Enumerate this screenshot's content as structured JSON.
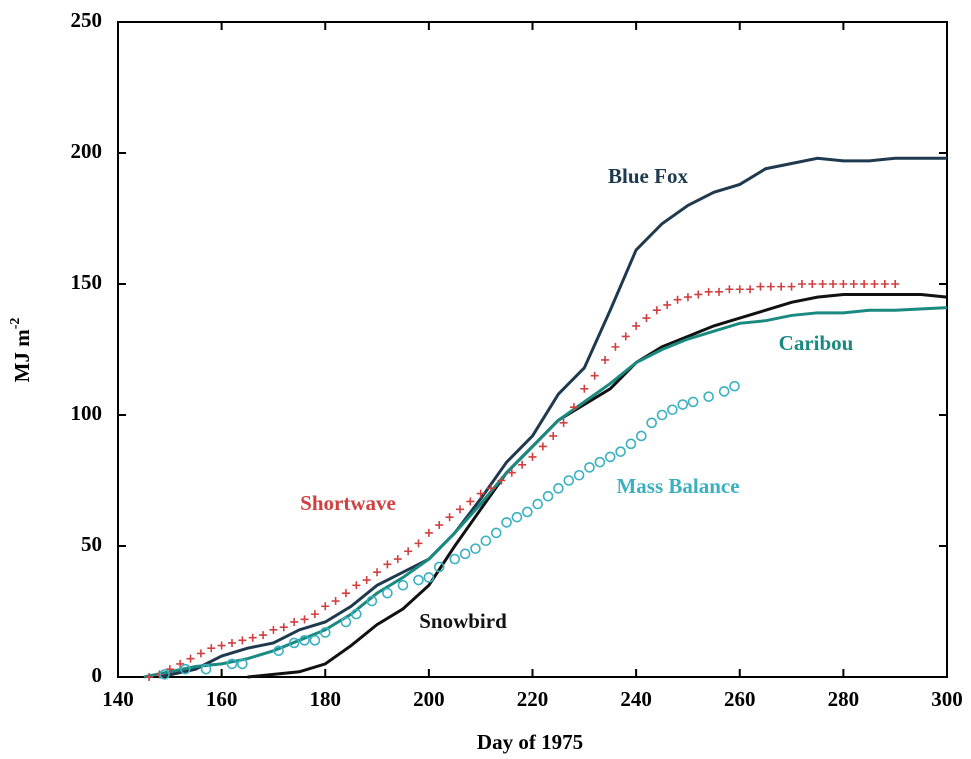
{
  "chart_data": {
    "type": "line",
    "xlabel": "Day of 1975",
    "ylabel": "MJ m",
    "ylabel_sup": "-2",
    "xlim": [
      140,
      300
    ],
    "xticks": [
      140,
      160,
      180,
      200,
      220,
      240,
      260,
      280,
      300
    ],
    "ylim": [
      0,
      250
    ],
    "yticks": [
      0,
      50,
      100,
      150,
      200,
      250
    ],
    "legend": "inline",
    "series": [
      {
        "name": "Blue Fox",
        "color": "#1f3a4f",
        "marker": "none",
        "x": [
          148,
          155,
          160,
          165,
          170,
          175,
          180,
          185,
          190,
          195,
          200,
          205,
          210,
          215,
          220,
          225,
          230,
          235,
          240,
          245,
          250,
          255,
          260,
          265,
          270,
          275,
          280,
          285,
          290,
          295,
          300
        ],
        "values": [
          0,
          3,
          8,
          11,
          13,
          18,
          21,
          27,
          35,
          40,
          45,
          55,
          68,
          82,
          92,
          108,
          118,
          140,
          163,
          173,
          180,
          185,
          188,
          194,
          196,
          198,
          197,
          197,
          198,
          198,
          198
        ]
      },
      {
        "name": "Snowbird",
        "color": "#111111",
        "marker": "none",
        "x": [
          165,
          170,
          175,
          180,
          185,
          190,
          195,
          200,
          205,
          210,
          215,
          220,
          225,
          230,
          235,
          240,
          245,
          250,
          255,
          260,
          265,
          270,
          275,
          280,
          285,
          290,
          295,
          300
        ],
        "values": [
          0,
          1,
          2,
          5,
          12,
          20,
          26,
          35,
          50,
          64,
          78,
          88,
          98,
          104,
          110,
          120,
          126,
          130,
          134,
          137,
          140,
          143,
          145,
          146,
          146,
          146,
          146,
          145
        ]
      },
      {
        "name": "Caribou",
        "color": "#1a8a80",
        "marker": "none",
        "x": [
          145,
          150,
          155,
          160,
          165,
          170,
          175,
          180,
          185,
          190,
          195,
          200,
          205,
          210,
          215,
          220,
          225,
          230,
          235,
          240,
          245,
          250,
          255,
          260,
          265,
          270,
          275,
          280,
          285,
          290,
          300
        ],
        "values": [
          0,
          2,
          4,
          5,
          7,
          10,
          14,
          18,
          24,
          32,
          38,
          45,
          55,
          66,
          78,
          88,
          98,
          105,
          112,
          120,
          125,
          129,
          132,
          135,
          136,
          138,
          139,
          139,
          140,
          140,
          141
        ]
      },
      {
        "name": "Shortwave",
        "color": "#d04040",
        "marker": "cross",
        "x": [
          146,
          148,
          150,
          152,
          154,
          156,
          158,
          160,
          162,
          164,
          166,
          168,
          170,
          172,
          174,
          176,
          178,
          180,
          182,
          184,
          186,
          188,
          190,
          192,
          194,
          196,
          198,
          200,
          202,
          204,
          206,
          208,
          210,
          212,
          214,
          216,
          218,
          220,
          222,
          224,
          226,
          228,
          230,
          232,
          234,
          236,
          238,
          240,
          242,
          244,
          246,
          248,
          250,
          252,
          254,
          256,
          258,
          260,
          262,
          264,
          266,
          268,
          270,
          272,
          274,
          276,
          278,
          280,
          282,
          284,
          286,
          288,
          290
        ],
        "values": [
          0,
          1,
          3,
          5,
          7,
          9,
          11,
          12,
          13,
          14,
          15,
          16,
          18,
          19,
          21,
          22,
          24,
          27,
          29,
          32,
          35,
          37,
          40,
          43,
          45,
          48,
          51,
          55,
          58,
          61,
          64,
          67,
          70,
          72,
          75,
          78,
          81,
          84,
          88,
          92,
          97,
          103,
          110,
          115,
          121,
          126,
          130,
          134,
          137,
          140,
          142,
          144,
          145,
          146,
          147,
          147,
          148,
          148,
          148,
          149,
          149,
          149,
          149,
          150,
          150,
          150,
          150,
          150,
          150,
          150,
          150,
          150,
          150
        ]
      },
      {
        "name": "Mass Balance",
        "color": "#3ab0c0",
        "marker": "circle",
        "x": [
          149,
          153,
          157,
          162,
          164,
          171,
          174,
          176,
          178,
          180,
          184,
          186,
          189,
          192,
          195,
          198,
          200,
          202,
          205,
          207,
          209,
          211,
          213,
          215,
          217,
          219,
          221,
          223,
          225,
          227,
          229,
          231,
          233,
          235,
          237,
          239,
          241,
          243,
          245,
          247,
          249,
          251,
          254,
          257,
          259
        ],
        "values": [
          1,
          3,
          3,
          5,
          5,
          10,
          13,
          14,
          14,
          17,
          21,
          24,
          29,
          32,
          35,
          37,
          38,
          42,
          45,
          47,
          49,
          52,
          55,
          59,
          61,
          63,
          66,
          69,
          72,
          75,
          77,
          80,
          82,
          84,
          86,
          89,
          92,
          97,
          100,
          102,
          104,
          105,
          107,
          109,
          111
        ]
      }
    ]
  }
}
